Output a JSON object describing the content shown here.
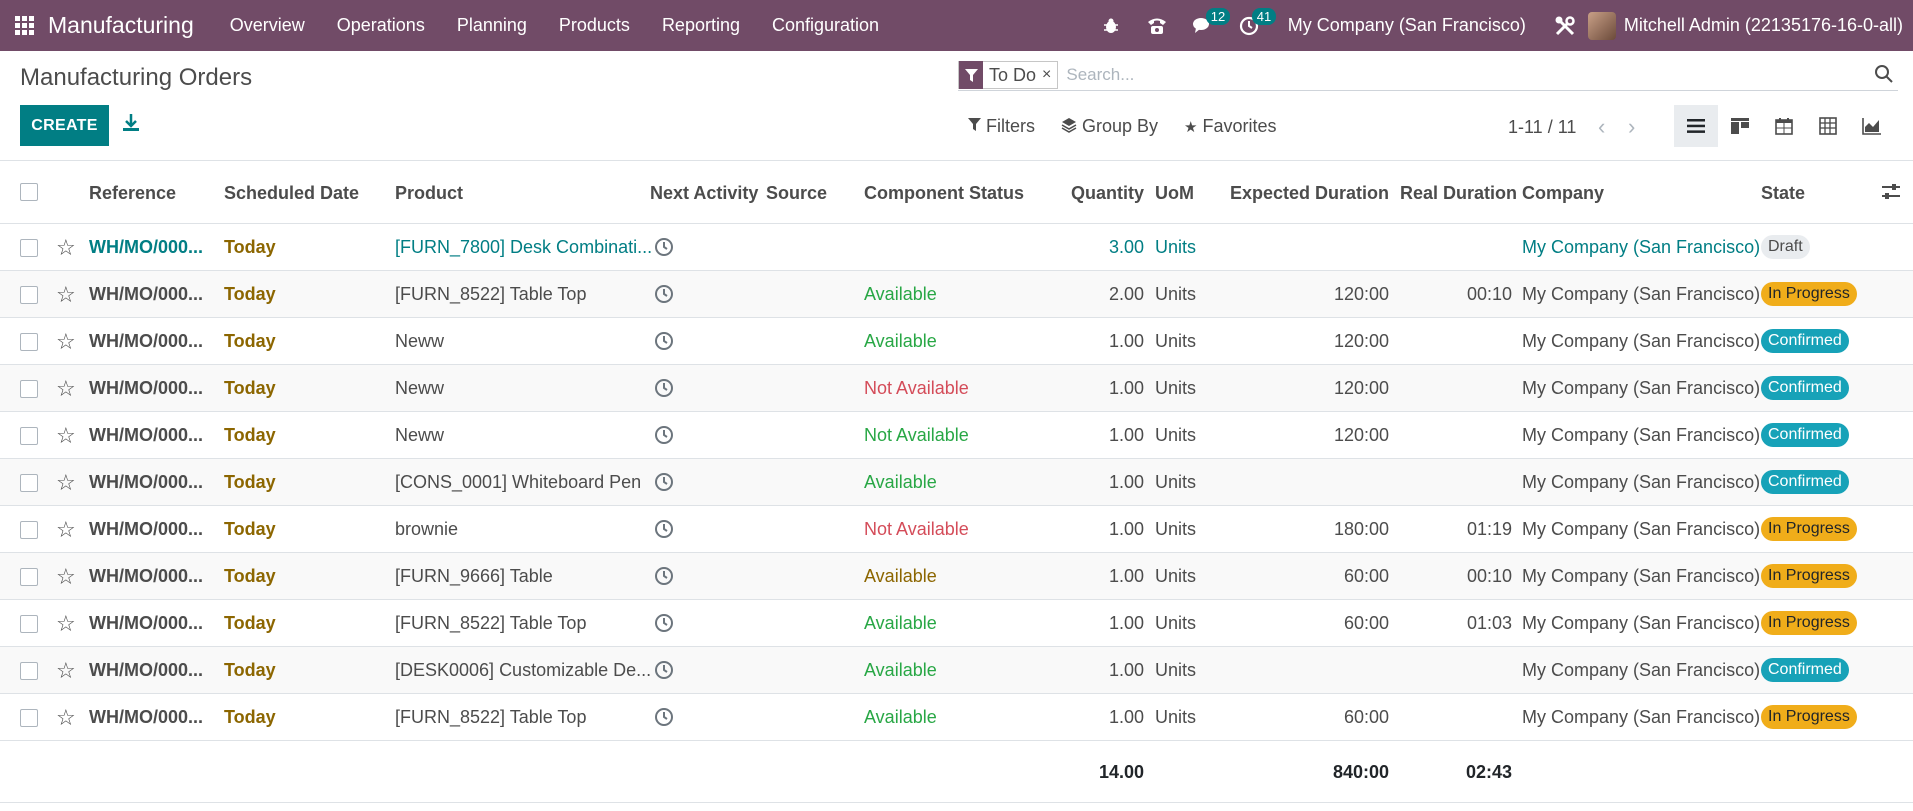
{
  "navbar": {
    "app_name": "Manufacturing",
    "menu": [
      "Overview",
      "Operations",
      "Planning",
      "Products",
      "Reporting",
      "Configuration"
    ],
    "messages_badge": "12",
    "activities_badge": "41",
    "company": "My Company (San Francisco)",
    "user": "Mitchell Admin (22135176-16-0-all)"
  },
  "page": {
    "title": "Manufacturing Orders",
    "create_label": "CREATE"
  },
  "search": {
    "facet": "To Do",
    "placeholder": "Search..."
  },
  "filters": {
    "filters_label": "Filters",
    "group_by_label": "Group By",
    "favorites_label": "Favorites"
  },
  "pager": {
    "value": "1-11 / 11"
  },
  "table": {
    "columns": {
      "reference": "Reference",
      "scheduled_date": "Scheduled Date",
      "product": "Product",
      "next_activity": "Next Activity",
      "source": "Source",
      "component_status": "Component Status",
      "quantity": "Quantity",
      "uom": "UoM",
      "expected_duration": "Expected Duration",
      "real_duration": "Real Duration",
      "company": "Company",
      "state": "State"
    },
    "rows": [
      {
        "reference": "WH/MO/000...",
        "date": "Today",
        "product": "[FURN_7800] Desk Combinati...",
        "component_status": "",
        "quantity": "3.00",
        "uom": "Units",
        "expected": "",
        "real": "",
        "company": "My Company (San Francisco)",
        "state": "Draft"
      },
      {
        "reference": "WH/MO/000...",
        "date": "Today",
        "product": "[FURN_8522] Table Top",
        "component_status": "Available",
        "quantity": "2.00",
        "uom": "Units",
        "expected": "120:00",
        "real": "00:10",
        "company": "My Company (San Francisco)",
        "state": "In Progress"
      },
      {
        "reference": "WH/MO/000...",
        "date": "Today",
        "product": "Neww",
        "component_status": "Available",
        "quantity": "1.00",
        "uom": "Units",
        "expected": "120:00",
        "real": "",
        "company": "My Company (San Francisco)",
        "state": "Confirmed"
      },
      {
        "reference": "WH/MO/000...",
        "date": "Today",
        "product": "Neww",
        "component_status": "Not Available",
        "quantity": "1.00",
        "uom": "Units",
        "expected": "120:00",
        "real": "",
        "company": "My Company (San Francisco)",
        "state": "Confirmed"
      },
      {
        "reference": "WH/MO/000...",
        "date": "Today",
        "product": "Neww",
        "component_status": "Not Available",
        "quantity": "1.00",
        "uom": "Units",
        "expected": "120:00",
        "real": "",
        "company": "My Company (San Francisco)",
        "state": "Confirmed"
      },
      {
        "reference": "WH/MO/000...",
        "date": "Today",
        "product": "[CONS_0001] Whiteboard Pen",
        "component_status": "Available",
        "quantity": "1.00",
        "uom": "Units",
        "expected": "",
        "real": "",
        "company": "My Company (San Francisco)",
        "state": "Confirmed"
      },
      {
        "reference": "WH/MO/000...",
        "date": "Today",
        "product": "brownie",
        "component_status": "Not Available",
        "quantity": "1.00",
        "uom": "Units",
        "expected": "180:00",
        "real": "01:19",
        "company": "My Company (San Francisco)",
        "state": "In Progress"
      },
      {
        "reference": "WH/MO/000...",
        "date": "Today",
        "product": "[FURN_9666] Table",
        "component_status": "Available",
        "quantity": "1.00",
        "uom": "Units",
        "expected": "60:00",
        "real": "00:10",
        "company": "My Company (San Francisco)",
        "state": "In Progress"
      },
      {
        "reference": "WH/MO/000...",
        "date": "Today",
        "product": "[FURN_8522] Table Top",
        "component_status": "Available",
        "quantity": "1.00",
        "uom": "Units",
        "expected": "60:00",
        "real": "01:03",
        "company": "My Company (San Francisco)",
        "state": "In Progress"
      },
      {
        "reference": "WH/MO/000...",
        "date": "Today",
        "product": "[DESK0006] Customizable De...",
        "component_status": "Available",
        "quantity": "1.00",
        "uom": "Units",
        "expected": "",
        "real": "",
        "company": "My Company (San Francisco)",
        "state": "Confirmed"
      },
      {
        "reference": "WH/MO/000...",
        "date": "Today",
        "product": "[FURN_8522] Table Top",
        "component_status": "Available",
        "quantity": "1.00",
        "uom": "Units",
        "expected": "60:00",
        "real": "",
        "company": "My Company (San Francisco)",
        "state": "In Progress"
      }
    ],
    "totals": {
      "quantity": "14.00",
      "expected": "840:00",
      "real": "02:43"
    }
  },
  "colors": {
    "navbar": "#714b67",
    "primary": "#017e84",
    "in_progress": "#f0ad1a",
    "confirmed": "#17a2b8",
    "available_green": "#28a745",
    "not_available_red": "#d44c59",
    "today_olive": "#8c6600"
  },
  "icons": [
    "apps-grid-icon",
    "bug-icon",
    "phone-icon",
    "chat-icon",
    "clock-icon",
    "tools-icon",
    "download-icon",
    "filter-icon",
    "layers-icon",
    "star-icon",
    "search-icon",
    "list-view-icon",
    "kanban-view-icon",
    "calendar-view-icon",
    "pivot-view-icon",
    "graph-view-icon",
    "optional-columns-icon"
  ]
}
